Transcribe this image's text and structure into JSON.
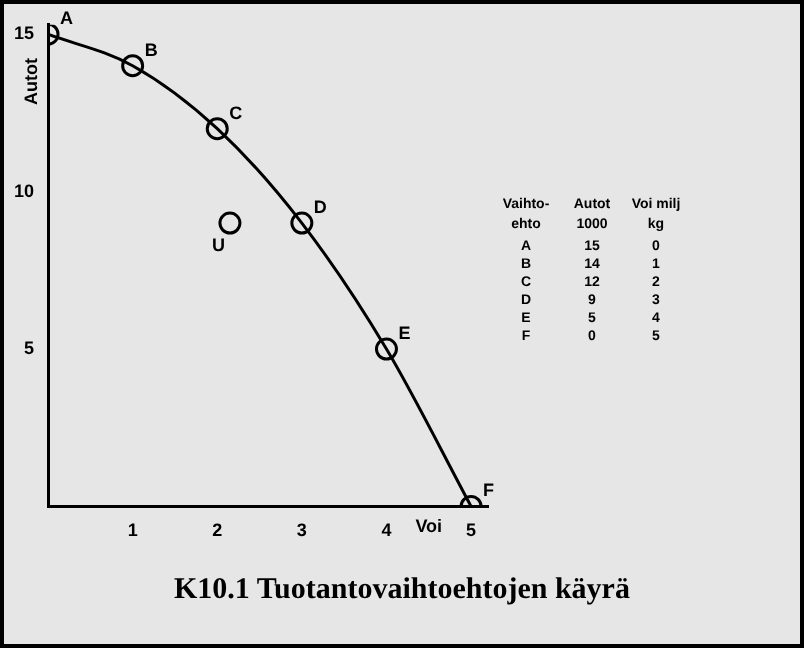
{
  "chart_data": [
    {
      "type": "line",
      "title": "K10.1 Tuotantovaihtoehtojen käyrä",
      "xlabel": "Voi",
      "ylabel": "Autot",
      "series": [
        {
          "type": "line",
          "color": "#000000",
          "x": [
            0,
            1,
            2,
            3,
            4,
            5
          ],
          "values": [
            15,
            14,
            12,
            9,
            5,
            0
          ]
        },
        {
          "type": "scatter",
          "color": "#000000",
          "x": [
            2.15
          ],
          "values": [
            9
          ]
        }
      ],
      "xlim": [
        0,
        5.2
      ],
      "xticks": [
        1,
        2,
        3,
        4,
        5
      ],
      "ylim": [
        0,
        15.3
      ],
      "yticks": [
        5,
        10,
        15
      ],
      "marker": "circle",
      "line_style": "solid",
      "grid": false,
      "legend": false,
      "annotations": [
        {
          "text": "A",
          "x": 0,
          "y": 15
        },
        {
          "text": "B",
          "x": 1,
          "y": 14
        },
        {
          "text": "C",
          "x": 2,
          "y": 12
        },
        {
          "text": "D",
          "x": 3,
          "y": 9
        },
        {
          "text": "E",
          "x": 4,
          "y": 5
        },
        {
          "text": "F",
          "x": 5,
          "y": 0
        },
        {
          "text": "U",
          "x": 2.15,
          "y": 9
        }
      ]
    },
    {
      "type": "other",
      "xlabel": "Vaihto-ehto",
      "categories": [
        "A",
        "B",
        "C",
        "D",
        "E",
        "F"
      ],
      "series": [
        {
          "name": "Autot 1000",
          "values": [
            15,
            14,
            12,
            9,
            5,
            0
          ]
        },
        {
          "name": "Voi milj kg",
          "values": [
            0,
            1,
            2,
            3,
            4,
            5
          ]
        }
      ],
      "data_labels": true
    }
  ]
}
